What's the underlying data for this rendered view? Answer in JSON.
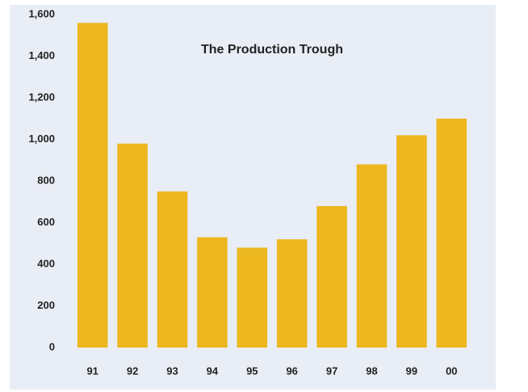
{
  "chart_data": {
    "type": "bar",
    "title": "The Production Trough",
    "categories": [
      "91",
      "92",
      "93",
      "94",
      "95",
      "96",
      "97",
      "98",
      "99",
      "00"
    ],
    "values": [
      1560,
      980,
      750,
      530,
      480,
      520,
      680,
      880,
      1020,
      1100
    ],
    "color": "#ecb71f",
    "background": "#e9edf5",
    "ylim": [
      0,
      1600
    ],
    "yticks": [
      0,
      200,
      400,
      600,
      800,
      {
        "value": 1000,
        "label": "1,000"
      },
      {
        "value": 1200,
        "label": "1,200"
      },
      {
        "value": 1400,
        "label": "1,400"
      },
      {
        "value": 1600,
        "label": "1,600"
      }
    ],
    "grid": false
  }
}
